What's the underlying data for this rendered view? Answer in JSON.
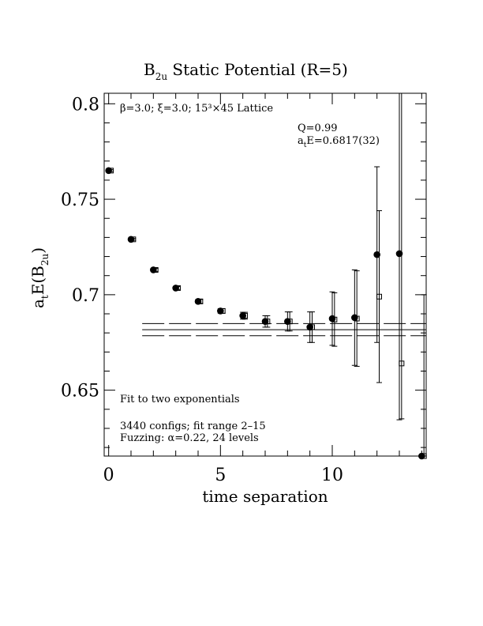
{
  "chart_data": {
    "type": "scatter",
    "title_main": "B",
    "title_sub": "2u",
    "title_rest": " Static Potential (R=5)",
    "ylabel_main": "a",
    "ylabel_t": "t",
    "ylabel_mid": "E(B",
    "ylabel_sub": "2u",
    "ylabel_end": ")",
    "xlabel": "time separation",
    "xlim": [
      -0.2,
      14.2
    ],
    "ylim": [
      0.6155,
      0.8055
    ],
    "xticks": [
      0,
      5,
      10
    ],
    "xtick_labels": [
      "0",
      "5",
      "10"
    ],
    "yticks": [
      0.65,
      0.7,
      0.75,
      0.8
    ],
    "ytick_labels": [
      "0.65",
      "0.7",
      "0.75",
      "0.8"
    ],
    "annotations": {
      "lattice": "β=3.0; ξ=3.0; 15³×45 Lattice",
      "q": "Q=0.99",
      "energy_main": "a",
      "energy_t": "t",
      "energy_rest": "E=0.6817(32)",
      "fit": "Fit to two exponentials",
      "configs": "3440 configs; fit range 2–15",
      "fuzzing": "Fuzzing: α=0.22, 24 levels"
    },
    "series": [
      {
        "marker": "filled-circle",
        "x": [
          0,
          1,
          2,
          3,
          4,
          5,
          6,
          7,
          8,
          9,
          10,
          11,
          12,
          13,
          14
        ],
        "y": [
          0.765,
          0.729,
          0.713,
          0.7035,
          0.6965,
          0.6915,
          0.689,
          0.686,
          0.686,
          0.683,
          0.6875,
          0.688,
          0.721,
          0.7215,
          0.6155
        ],
        "yerr_lo": [
          0.0005,
          0.0005,
          0.0008,
          0.0008,
          0.001,
          0.0012,
          0.0018,
          0.003,
          0.005,
          0.008,
          0.014,
          0.025,
          0.046,
          0.087,
          0
        ],
        "yerr_hi": [
          0.0005,
          0.0005,
          0.0008,
          0.0008,
          0.001,
          0.0012,
          0.0018,
          0.003,
          0.005,
          0.008,
          0.014,
          0.025,
          0.046,
          0.087,
          0
        ]
      },
      {
        "marker": "open-square",
        "x": [
          0.1,
          1.1,
          2.1,
          3.1,
          4.1,
          5.1,
          6.1,
          7.1,
          8.1,
          9.1,
          10.1,
          11.1,
          12.1,
          13.1,
          14.1
        ],
        "y": [
          0.765,
          0.729,
          0.713,
          0.7035,
          0.6965,
          0.6915,
          0.689,
          0.686,
          0.686,
          0.683,
          0.687,
          0.6875,
          0.699,
          0.664,
          0.6155
        ],
        "yerr_lo": [
          0.0005,
          0.0005,
          0.0008,
          0.0008,
          0.001,
          0.0012,
          0.0018,
          0.003,
          0.005,
          0.008,
          0.014,
          0.025,
          0.045,
          0.029,
          0
        ],
        "yerr_hi": [
          0.0005,
          0.0005,
          0.0008,
          0.0008,
          0.001,
          0.0012,
          0.0018,
          0.003,
          0.005,
          0.008,
          0.014,
          0.025,
          0.045,
          0.142,
          0.0845
        ]
      }
    ],
    "fit": {
      "x_start": 1.5,
      "x_end": 14.2,
      "value": 0.6817,
      "error": 0.0032,
      "band_style": "dashed"
    }
  }
}
